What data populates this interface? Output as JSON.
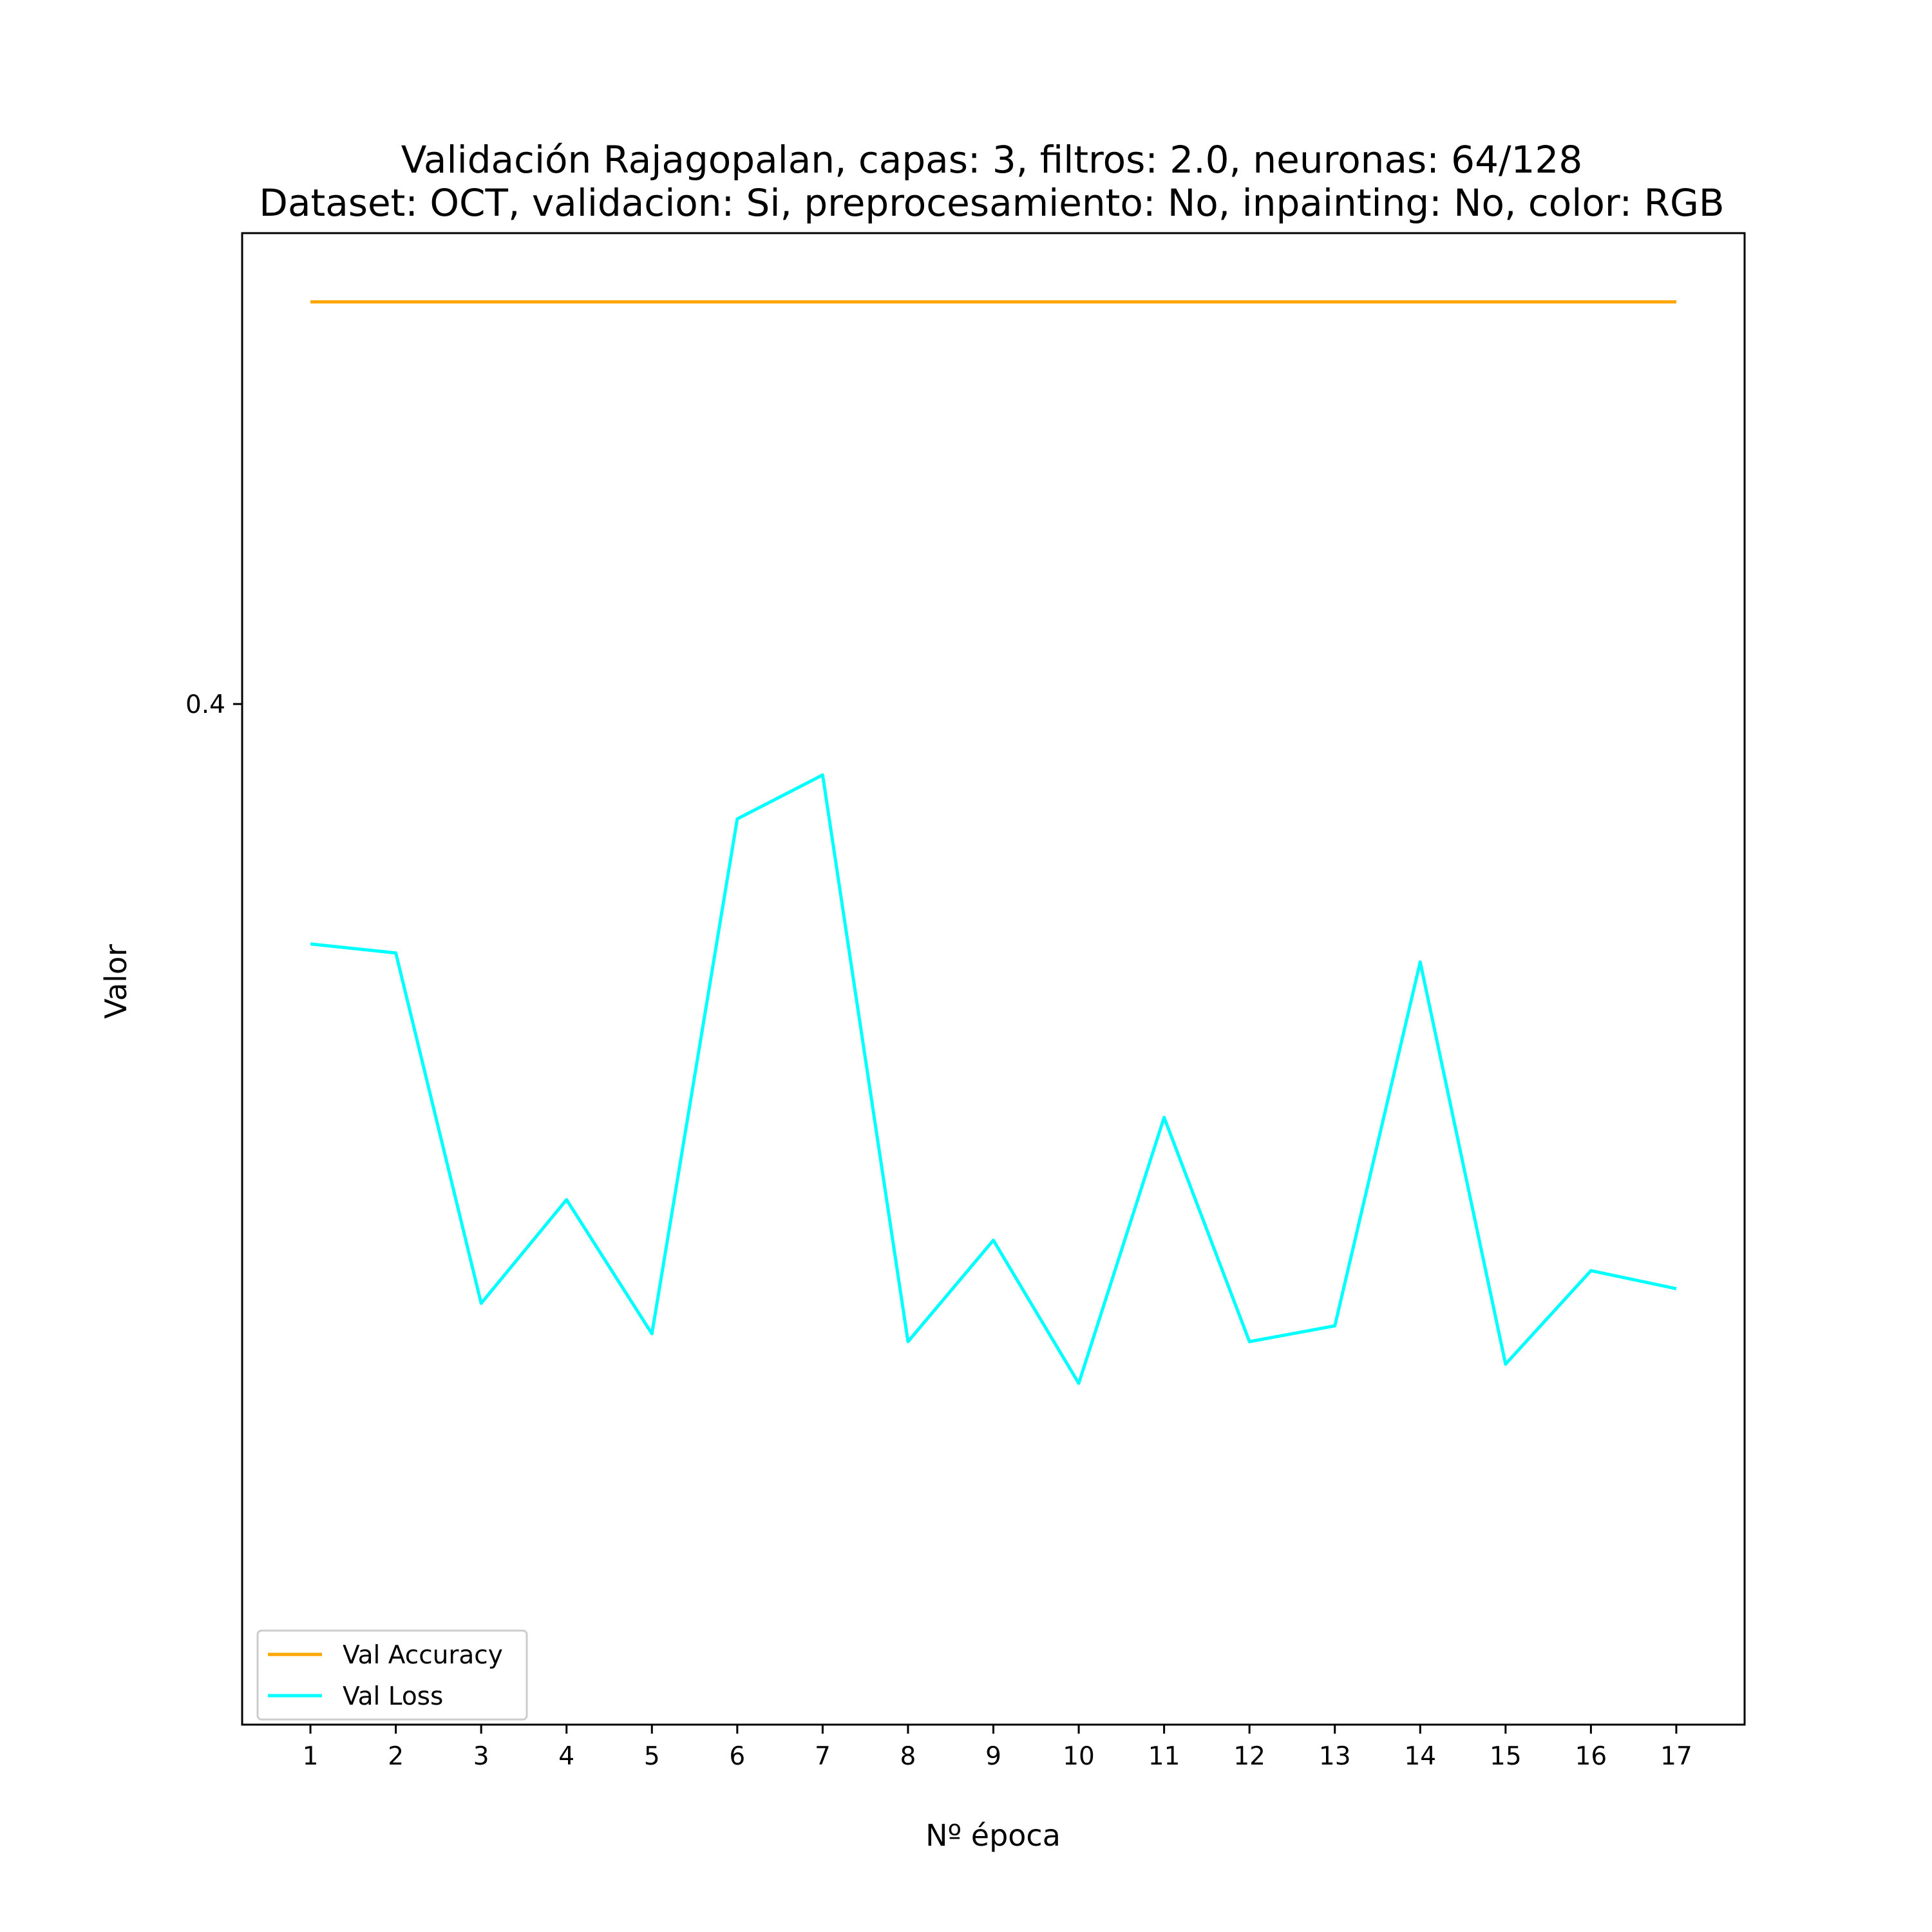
{
  "chart_data": {
    "type": "line",
    "title": "Validación Rajagopalan, capas: 3, filtros: 2.0, neuronas: 64/128",
    "subtitle": "Dataset: OCT, validacion: Si, preprocesamiento: No, inpainting: No, color: RGB",
    "xlabel": "Nº época",
    "ylabel": "Valor",
    "x": [
      1,
      2,
      3,
      4,
      5,
      6,
      7,
      8,
      9,
      10,
      11,
      12,
      13,
      14,
      15,
      16,
      17
    ],
    "xlim": [
      0.2,
      17.8
    ],
    "ylim": [
      0.3094,
      0.4418
    ],
    "yticks": [
      0.4
    ],
    "ytick_labels": [
      "0.4"
    ],
    "grid": false,
    "legend_position": "lower-left",
    "series": [
      {
        "name": "Val Accuracy",
        "color": "#ffa500",
        "values": [
          0.4357,
          0.4357,
          0.4357,
          0.4357,
          0.4357,
          0.4357,
          0.4357,
          0.4357,
          0.4357,
          0.4357,
          0.4357,
          0.4357,
          0.4357,
          0.4357,
          0.4357,
          0.4357,
          0.4357
        ]
      },
      {
        "name": "Val Loss",
        "color": "#00ffff",
        "values": [
          0.3787,
          0.3779,
          0.3468,
          0.356,
          0.3441,
          0.3898,
          0.3937,
          0.3434,
          0.3524,
          0.3397,
          0.3633,
          0.3434,
          0.3448,
          0.3771,
          0.3414,
          0.3497,
          0.3481
        ]
      }
    ]
  }
}
